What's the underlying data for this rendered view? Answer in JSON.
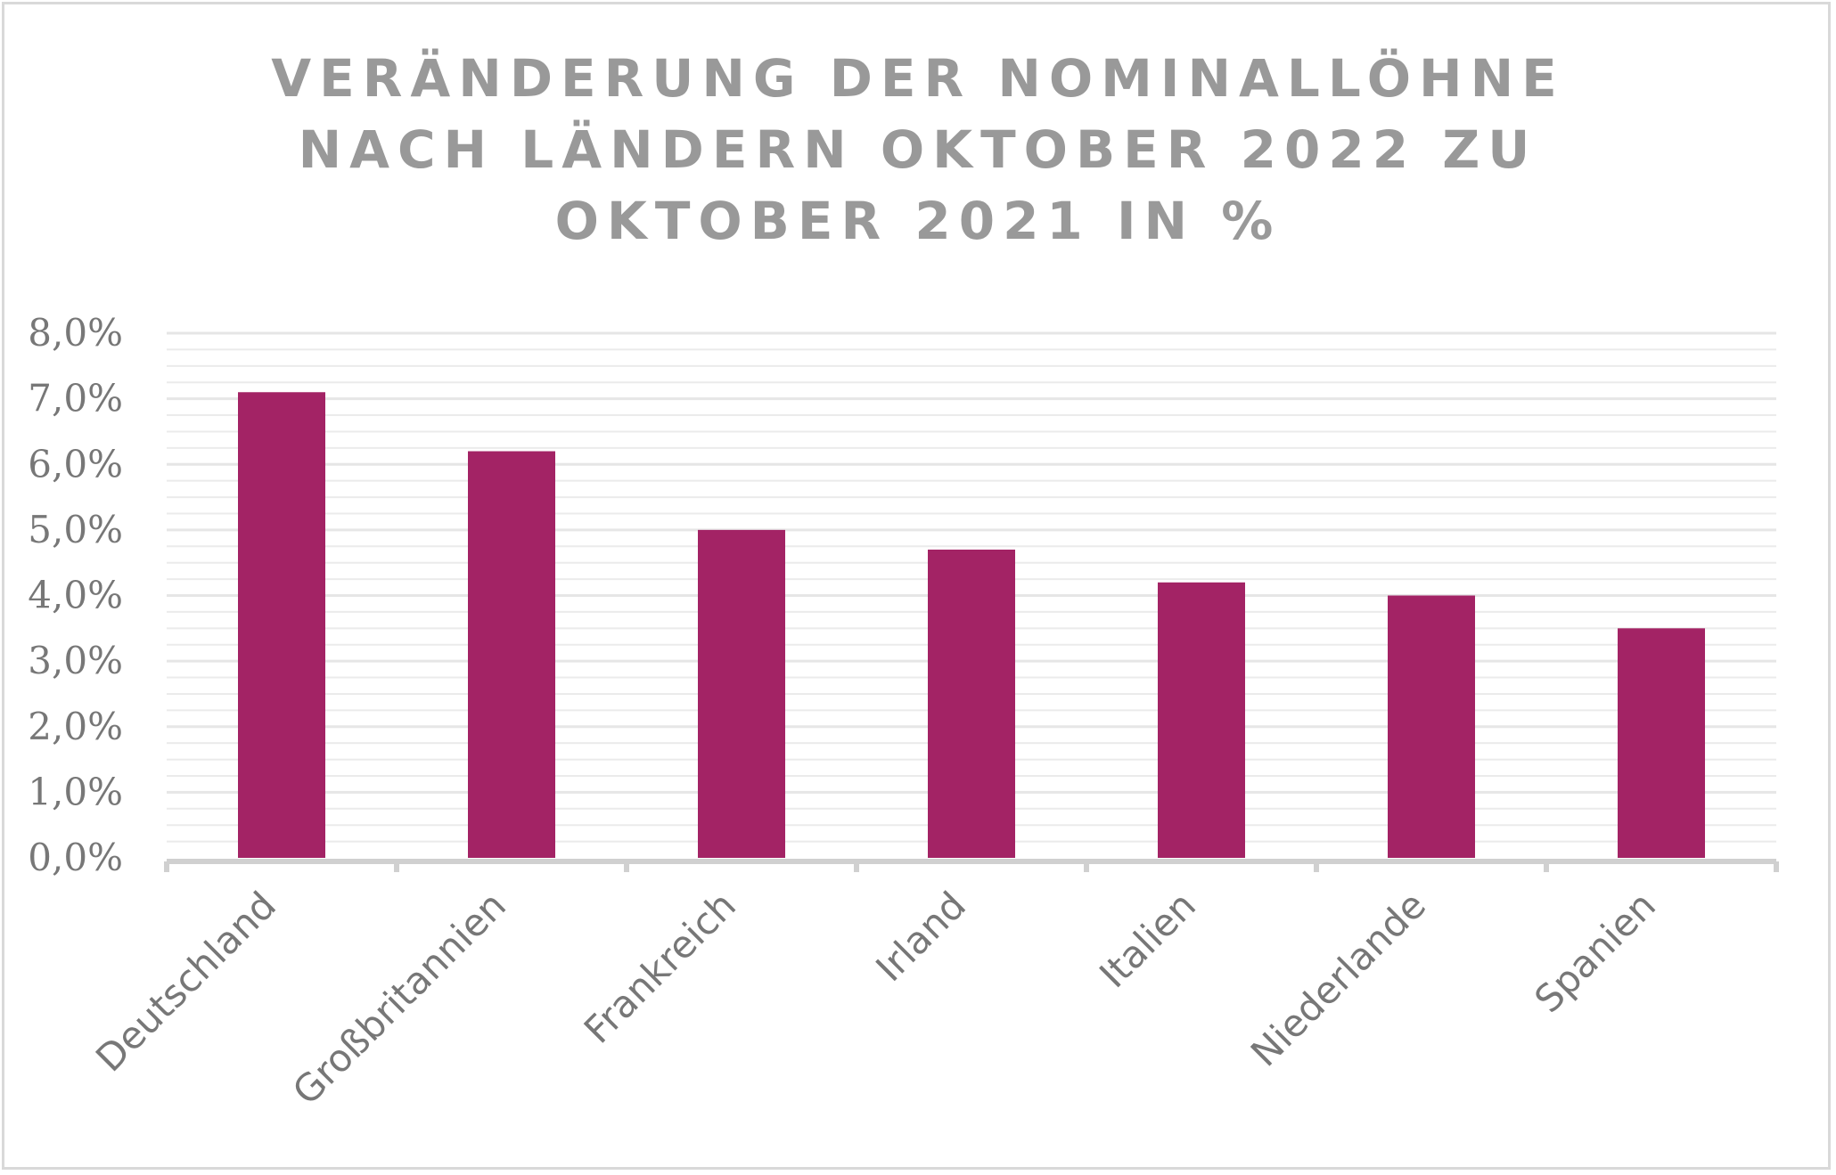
{
  "chart_data": {
    "type": "bar",
    "title_lines": [
      "VERÄNDERUNG DER NOMINALLÖHNE",
      "NACH LÄNDERN OKTOBER 2022 ZU",
      "OKTOBER 2021 IN %"
    ],
    "categories": [
      "Deutschland",
      "Großbritannien",
      "Frankreich",
      "Irland",
      "Italien",
      "Niederlande",
      "Spanien"
    ],
    "values": [
      7.1,
      6.2,
      5.0,
      4.7,
      4.2,
      4.0,
      3.5
    ],
    "ylim": [
      0,
      8
    ],
    "yticks": [
      "0,0%",
      "1,0%",
      "2,0%",
      "3,0%",
      "4,0%",
      "5,0%",
      "6,0%",
      "7,0%",
      "8,0%"
    ],
    "xlabel": "",
    "ylabel": "",
    "grid": true,
    "legend": "none",
    "colors": {
      "bar": "#a32365",
      "title": "#999999",
      "ticks": "#777777",
      "grid": "#ebebeb",
      "axis": "#d0d0d0"
    }
  }
}
